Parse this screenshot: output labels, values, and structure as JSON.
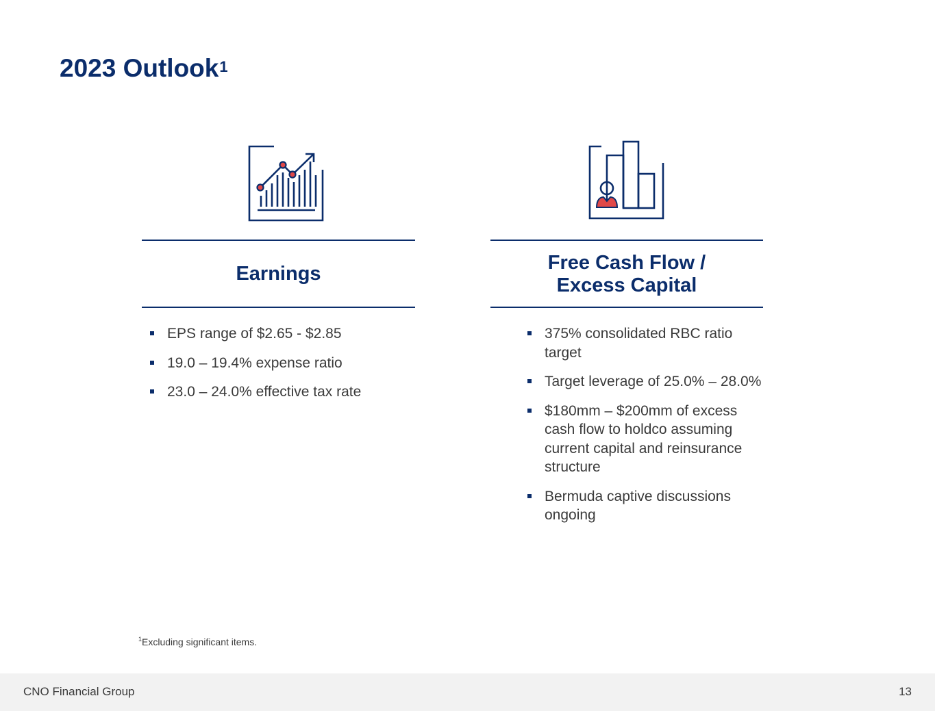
{
  "title": {
    "text": "2023 Outlook",
    "superscript": "1"
  },
  "earnings": {
    "icon": "line-chart-icon",
    "heading": "Earnings",
    "bullets": [
      "EPS range of $2.65 - $2.85",
      "19.0 – 19.4% expense ratio",
      "23.0 – 24.0% effective tax rate"
    ]
  },
  "fcf": {
    "icon": "person-bar-chart-icon",
    "heading_line1": "Free Cash Flow /",
    "heading_line2": "Excess Capital",
    "bullets": [
      "375% consolidated RBC ratio target",
      "Target leverage of 25.0% – 28.0%",
      "$180mm – $200mm of excess cash flow to holdco assuming current capital and reinsurance structure",
      "Bermuda captive discussions ongoing"
    ]
  },
  "footnote": {
    "marker": "1",
    "text": "Excluding significant items."
  },
  "footer": {
    "company": "CNO Financial Group",
    "page_number": "13"
  },
  "colors": {
    "navy": "#0b2d6b",
    "accent_red": "#e04848",
    "text": "#3a3a3a",
    "footer_bg": "#f2f2f2"
  }
}
